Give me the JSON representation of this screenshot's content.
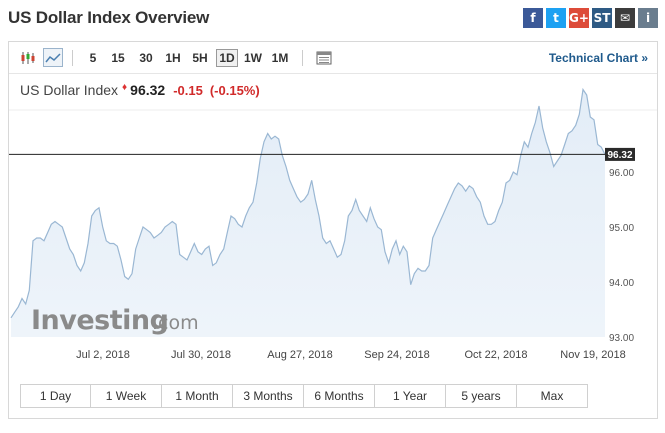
{
  "header": {
    "title": "US Dollar Index Overview",
    "share": [
      {
        "name": "facebook-icon",
        "glyph": "f",
        "color": "#3b5998"
      },
      {
        "name": "twitter-icon",
        "glyph": "t",
        "color": "#1da1f2"
      },
      {
        "name": "google-plus-icon",
        "glyph": "G+",
        "color": "#dd4b39"
      },
      {
        "name": "stocktwits-icon",
        "glyph": "ST",
        "color": "#2e5a84"
      },
      {
        "name": "email-icon",
        "glyph": "✉",
        "color": "#3c3c3c"
      },
      {
        "name": "info-icon",
        "glyph": "i",
        "color": "#6a7d8e"
      }
    ]
  },
  "toolbar": {
    "intervals": [
      "5",
      "15",
      "30",
      "1H",
      "5H",
      "1D",
      "1W",
      "1M"
    ],
    "active_interval": "1D",
    "technical_chart": "Technical Chart »"
  },
  "quote": {
    "name": "US Dollar Index",
    "price": "96.32",
    "change": "-0.15",
    "change_pct": "(-0.15%)"
  },
  "watermark": {
    "brand": "Investing",
    "suffix": ".com"
  },
  "chart_data": {
    "type": "area",
    "x_labels": [
      "Jul 2, 2018",
      "Jul 30, 2018",
      "Aug 27, 2018",
      "Sep 24, 2018",
      "Oct 22, 2018",
      "Nov 19, 2018"
    ],
    "y_ticks": [
      "96.00",
      "95.00",
      "94.00",
      "93.00"
    ],
    "ylim": [
      93.0,
      97.2
    ],
    "last_price_label": "96.32",
    "last_price": 96.32,
    "series": [
      {
        "values": [
          93.35,
          93.45,
          93.55,
          93.7,
          93.6,
          93.85,
          94.75,
          94.8,
          94.8,
          94.75,
          94.9,
          95.05,
          95.1,
          95.05,
          95.0,
          94.8,
          94.6,
          94.5,
          94.3,
          94.2,
          94.35,
          94.7,
          95.2,
          95.3,
          95.35,
          95.0,
          94.75,
          94.7,
          94.7,
          94.65,
          94.4,
          94.1,
          94.05,
          94.15,
          94.6,
          94.8,
          95.0,
          94.95,
          94.9,
          94.8,
          94.85,
          94.9,
          95.0,
          95.05,
          95.1,
          95.05,
          94.5,
          94.45,
          94.4,
          94.55,
          94.7,
          94.55,
          94.5,
          94.6,
          94.65,
          94.3,
          94.35,
          94.5,
          94.6,
          94.9,
          95.2,
          95.15,
          95.05,
          95.0,
          95.2,
          95.35,
          95.45,
          95.8,
          96.25,
          96.55,
          96.7,
          96.6,
          96.65,
          96.6,
          96.3,
          96.1,
          95.85,
          95.7,
          95.55,
          95.45,
          95.5,
          95.6,
          95.85,
          95.5,
          95.2,
          94.8,
          94.7,
          94.75,
          94.6,
          94.45,
          94.5,
          94.75,
          95.2,
          95.3,
          95.5,
          95.3,
          95.2,
          95.1,
          95.35,
          95.15,
          95.0,
          94.95,
          94.55,
          94.35,
          94.6,
          94.75,
          94.5,
          94.65,
          94.55,
          93.95,
          94.15,
          94.25,
          94.2,
          94.2,
          94.3,
          94.8,
          94.95,
          95.1,
          95.25,
          95.4,
          95.55,
          95.7,
          95.8,
          95.75,
          95.65,
          95.75,
          95.7,
          95.55,
          95.45,
          95.2,
          95.05,
          95.05,
          95.1,
          95.3,
          95.45,
          95.8,
          95.85,
          96.0,
          95.95,
          96.3,
          96.55,
          96.45,
          96.7,
          96.9,
          97.2,
          96.8,
          96.55,
          96.35,
          96.1,
          96.2,
          96.3,
          96.5,
          96.7,
          96.75,
          96.85,
          97.05,
          97.5,
          97.4,
          97.0,
          96.95,
          96.5,
          96.45,
          96.32
        ]
      }
    ]
  },
  "range_buttons": [
    "1 Day",
    "1 Week",
    "1 Month",
    "3 Months",
    "6 Months",
    "1 Year",
    "5 years",
    "Max"
  ]
}
